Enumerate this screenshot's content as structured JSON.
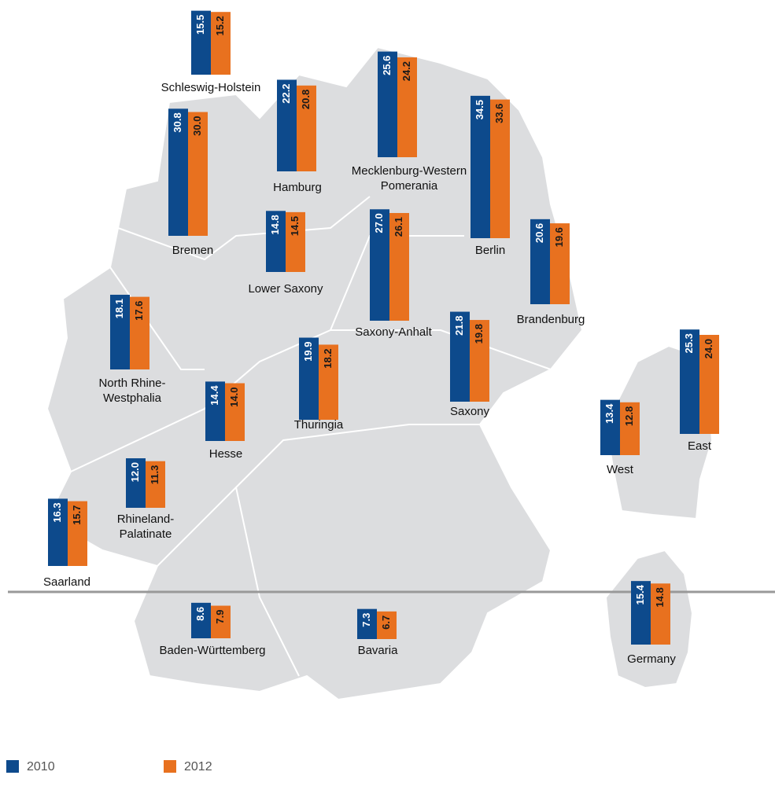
{
  "chart_data": {
    "type": "bar",
    "categories": [
      "Schleswig-Holstein",
      "Hamburg",
      "Mecklenburg-Western Pomerania",
      "Berlin",
      "Bremen",
      "Lower Saxony",
      "Saxony-Anhalt",
      "Brandenburg",
      "North Rhine-Westphalia",
      "Thuringia",
      "Saxony",
      "Hesse",
      "Rhineland-Palatinate",
      "Saarland",
      "Baden-Württemberg",
      "Bavaria",
      "West",
      "East",
      "Germany"
    ],
    "series": [
      {
        "name": "2010",
        "color": "#0d4a8c",
        "values": [
          15.5,
          22.2,
          25.6,
          34.5,
          30.8,
          14.8,
          27.0,
          20.6,
          18.1,
          19.9,
          21.8,
          14.4,
          12.0,
          16.3,
          8.6,
          7.3,
          13.4,
          25.3,
          15.4
        ],
        "value_labels": [
          "15.5",
          "22.2",
          "25.6",
          "34.5",
          "30.8",
          "14.8",
          "27.0",
          "20.6",
          "18.1",
          "19.9",
          "21.8",
          "14.4",
          "12.0",
          "16.3",
          "8.6",
          "7.3",
          "13.4",
          "25.3",
          "15.4"
        ]
      },
      {
        "name": "2012",
        "color": "#e8711f",
        "values": [
          15.2,
          20.8,
          24.2,
          33.6,
          30.0,
          14.5,
          26.1,
          19.6,
          17.6,
          18.2,
          19.8,
          14.0,
          11.3,
          15.7,
          7.9,
          6.7,
          12.8,
          24.0,
          14.8
        ],
        "value_labels": [
          "15.2",
          "20.8",
          "24.2",
          "33.6",
          "30.0",
          "14.5",
          "26.1",
          "19.6",
          "17.6",
          "18.2",
          "19.8",
          "14.0",
          "11.3",
          "15.7",
          "7.9",
          "6.7",
          "12.8",
          "24.0",
          "14.8"
        ]
      }
    ]
  }
}
